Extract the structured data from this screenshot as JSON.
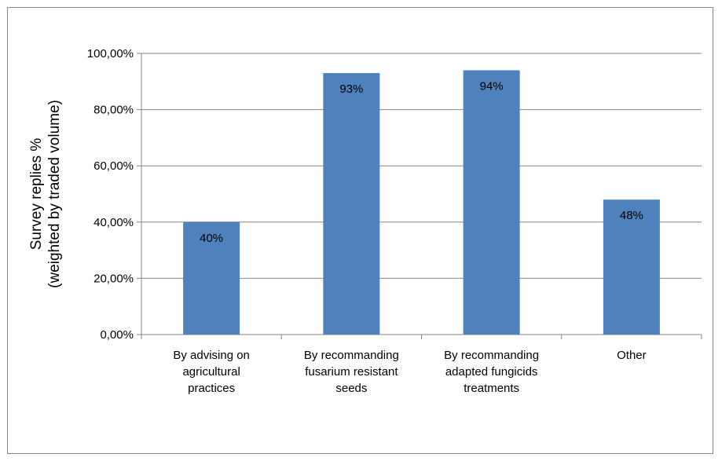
{
  "chart_data": {
    "type": "bar",
    "title": "",
    "xlabel": "",
    "ylabel_lines": [
      "Survey replies %",
      "(weighted by traded volume)"
    ],
    "categories": [
      [
        "By advising on",
        "agricultural",
        "practices"
      ],
      [
        "By recommanding",
        "fusarium resistant",
        "seeds"
      ],
      [
        "By recommanding",
        "adapted fungicids",
        "treatments"
      ],
      [
        "Other"
      ]
    ],
    "values": [
      0.4,
      0.93,
      0.94,
      0.48
    ],
    "data_labels": [
      "40%",
      "93%",
      "94%",
      "48%"
    ],
    "yticks": [
      0,
      0.2,
      0.4,
      0.6,
      0.8,
      1.0
    ],
    "ytick_labels": [
      "0,00%",
      "20,00%",
      "40,00%",
      "60,00%",
      "80,00%",
      "100,00%"
    ],
    "ylim": [
      0,
      1.0
    ],
    "grid": true,
    "legend": "none",
    "bar_color": "#4f81bd",
    "grid_color": "#868686"
  }
}
